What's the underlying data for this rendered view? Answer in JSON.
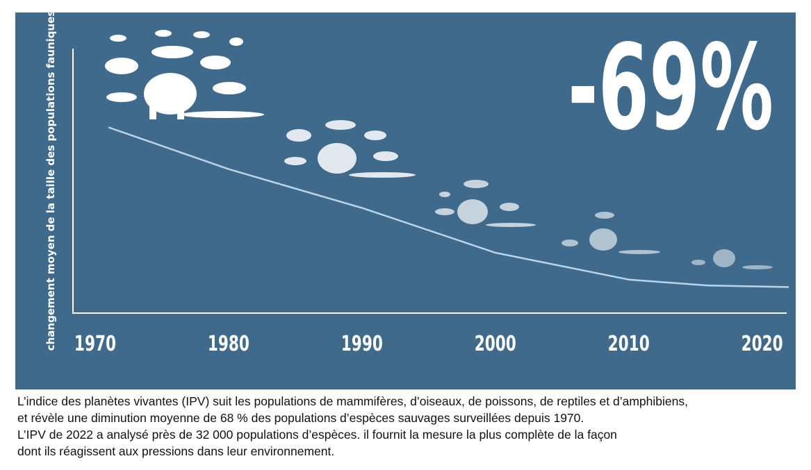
{
  "chart_data": {
    "type": "line",
    "ylabel": "changement moyen de la taille des populations fauniques",
    "headline": "-69%",
    "x": [
      1971,
      1980,
      1990,
      2000,
      2010,
      2016,
      2022
    ],
    "series": [
      {
        "name": "IPV",
        "color": "#b9d5ec",
        "values": [
          62,
          48,
          35,
          20,
          11,
          9,
          8.5
        ]
      }
    ],
    "xlim": [
      1968,
      2022
    ],
    "xticks": [
      1970,
      1980,
      1990,
      2000,
      2010,
      2020
    ],
    "ylim": [
      0,
      100
    ]
  },
  "caption": [
    "L’indice des planètes vivantes  (IPV) suit les populations de mammifères, d’oiseaux, de poissons, de reptiles et d’amphibiens,",
    "et révèle une diminution moyenne de 68 % des populations d’espèces sauvages surveillées depuis 1970.",
    "L’IPV de 2022 a analysé près de 32 000 populations d’espèces. il fournit la mesure la plus complète de la façon",
    "dont ils réagissent aux pressions dans leur environnement."
  ]
}
